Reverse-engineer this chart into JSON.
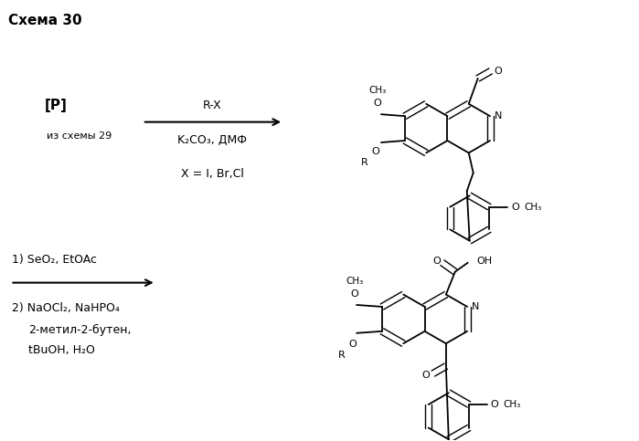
{
  "title": "Схема 30",
  "title_fontsize": 11,
  "title_weight": "bold",
  "bg_color": "#ffffff",
  "text_color": "#000000",
  "fig_width": 6.99,
  "fig_height": 4.83,
  "dpi": 100,
  "r1_label1": "[P]",
  "r1_label2": "из схемы 29",
  "r1_above": "R-X",
  "r1_below": "K₂CO₃, ДМФ",
  "r1_cond": "X = I, Br,Cl",
  "r2_above": "1) SeO₂, EtOAc",
  "r2_below1": "2) NaOCl₂, NaHPO₄",
  "r2_below2": "2-метил-2-бутен,",
  "r2_below3": "tBuOH, H₂O"
}
